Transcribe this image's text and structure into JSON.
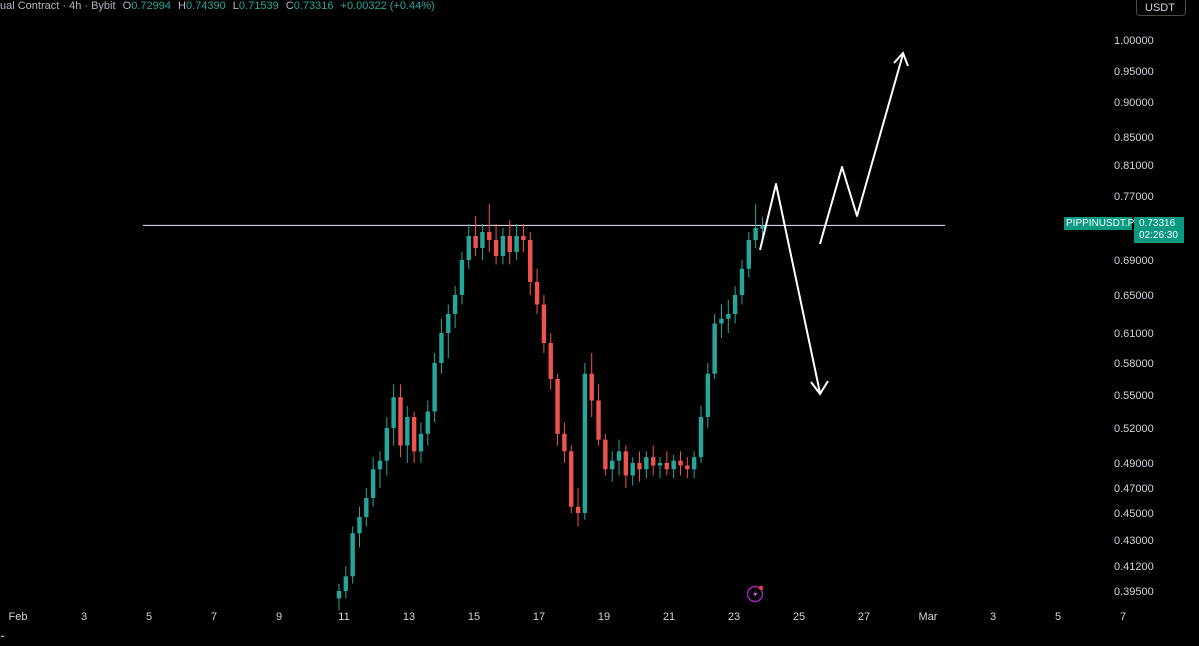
{
  "header": {
    "title": "ual Contract · 4h · Bybit",
    "open_label": "O",
    "open": "0.72994",
    "high_label": "H",
    "high": "0.74390",
    "low_label": "L",
    "low": "0.71539",
    "close_label": "C",
    "close": "0.73316",
    "change": "+0.00322 (+0.44%)"
  },
  "currency_button": "USDT",
  "price_tag": {
    "symbol": "PIPPINUSDT.P",
    "price": "0.73316",
    "countdown": "02:26:30"
  },
  "colors": {
    "up": "#26a69a",
    "down": "#ef5350",
    "accent": "#089981",
    "background": "#000000",
    "drawing": "#ffffff"
  },
  "chart_data": {
    "type": "candlestick",
    "interval": "4h",
    "y_tick_labels": [
      "1.00000",
      "0.95000",
      "0.90000",
      "0.85000",
      "0.81000",
      "0.77000",
      "0.69000",
      "0.65000",
      "0.61000",
      "0.58000",
      "0.55000",
      "0.52000",
      "0.49000",
      "0.47000",
      "0.45000",
      "0.43000",
      "0.41200",
      "0.39500"
    ],
    "x_tick_labels": [
      "Feb",
      "3",
      "5",
      "7",
      "9",
      "11",
      "13",
      "15",
      "17",
      "19",
      "21",
      "23",
      "25",
      "27",
      "Mar",
      "3",
      "5",
      "7"
    ],
    "horizontal_line": 0.7332,
    "candles": [
      [
        0.39,
        0.4,
        0.382,
        0.395
      ],
      [
        0.395,
        0.412,
        0.39,
        0.405
      ],
      [
        0.405,
        0.44,
        0.4,
        0.435
      ],
      [
        0.435,
        0.455,
        0.425,
        0.447
      ],
      [
        0.447,
        0.47,
        0.44,
        0.462
      ],
      [
        0.462,
        0.495,
        0.455,
        0.485
      ],
      [
        0.485,
        0.5,
        0.47,
        0.492
      ],
      [
        0.492,
        0.53,
        0.48,
        0.52
      ],
      [
        0.52,
        0.56,
        0.505,
        0.548
      ],
      [
        0.548,
        0.56,
        0.495,
        0.505
      ],
      [
        0.505,
        0.54,
        0.49,
        0.53
      ],
      [
        0.53,
        0.535,
        0.49,
        0.5
      ],
      [
        0.5,
        0.525,
        0.49,
        0.515
      ],
      [
        0.515,
        0.545,
        0.505,
        0.535
      ],
      [
        0.535,
        0.59,
        0.525,
        0.58
      ],
      [
        0.58,
        0.625,
        0.57,
        0.61
      ],
      [
        0.61,
        0.64,
        0.585,
        0.63
      ],
      [
        0.63,
        0.66,
        0.615,
        0.65
      ],
      [
        0.65,
        0.7,
        0.64,
        0.69
      ],
      [
        0.69,
        0.735,
        0.68,
        0.72
      ],
      [
        0.72,
        0.745,
        0.695,
        0.705
      ],
      [
        0.705,
        0.735,
        0.69,
        0.725
      ],
      [
        0.725,
        0.76,
        0.7,
        0.715
      ],
      [
        0.715,
        0.735,
        0.685,
        0.695
      ],
      [
        0.695,
        0.73,
        0.685,
        0.72
      ],
      [
        0.72,
        0.74,
        0.685,
        0.7
      ],
      [
        0.7,
        0.735,
        0.69,
        0.72
      ],
      [
        0.72,
        0.735,
        0.7,
        0.715
      ],
      [
        0.715,
        0.725,
        0.65,
        0.665
      ],
      [
        0.665,
        0.68,
        0.63,
        0.64
      ],
      [
        0.64,
        0.65,
        0.59,
        0.6
      ],
      [
        0.6,
        0.61,
        0.555,
        0.565
      ],
      [
        0.565,
        0.57,
        0.505,
        0.515
      ],
      [
        0.515,
        0.525,
        0.49,
        0.5
      ],
      [
        0.5,
        0.505,
        0.45,
        0.455
      ],
      [
        0.455,
        0.47,
        0.44,
        0.45
      ],
      [
        0.45,
        0.58,
        0.445,
        0.57
      ],
      [
        0.57,
        0.59,
        0.53,
        0.545
      ],
      [
        0.545,
        0.56,
        0.505,
        0.51
      ],
      [
        0.51,
        0.515,
        0.48,
        0.485
      ],
      [
        0.485,
        0.5,
        0.475,
        0.492
      ],
      [
        0.492,
        0.51,
        0.48,
        0.5
      ],
      [
        0.5,
        0.505,
        0.47,
        0.48
      ],
      [
        0.48,
        0.495,
        0.472,
        0.49
      ],
      [
        0.49,
        0.5,
        0.475,
        0.485
      ],
      [
        0.485,
        0.5,
        0.478,
        0.495
      ],
      [
        0.495,
        0.505,
        0.48,
        0.488
      ],
      [
        0.488,
        0.495,
        0.478,
        0.49
      ],
      [
        0.49,
        0.5,
        0.48,
        0.485
      ],
      [
        0.485,
        0.497,
        0.478,
        0.492
      ],
      [
        0.492,
        0.5,
        0.48,
        0.488
      ],
      [
        0.488,
        0.495,
        0.478,
        0.485
      ],
      [
        0.485,
        0.5,
        0.478,
        0.495
      ],
      [
        0.495,
        0.54,
        0.49,
        0.53
      ],
      [
        0.53,
        0.58,
        0.52,
        0.57
      ],
      [
        0.57,
        0.63,
        0.565,
        0.62
      ],
      [
        0.62,
        0.64,
        0.605,
        0.625
      ],
      [
        0.625,
        0.645,
        0.61,
        0.63
      ],
      [
        0.63,
        0.66,
        0.62,
        0.65
      ],
      [
        0.65,
        0.69,
        0.64,
        0.68
      ],
      [
        0.68,
        0.725,
        0.67,
        0.715
      ],
      [
        0.715,
        0.76,
        0.705,
        0.73
      ],
      [
        0.729,
        0.744,
        0.715,
        0.733
      ]
    ]
  }
}
